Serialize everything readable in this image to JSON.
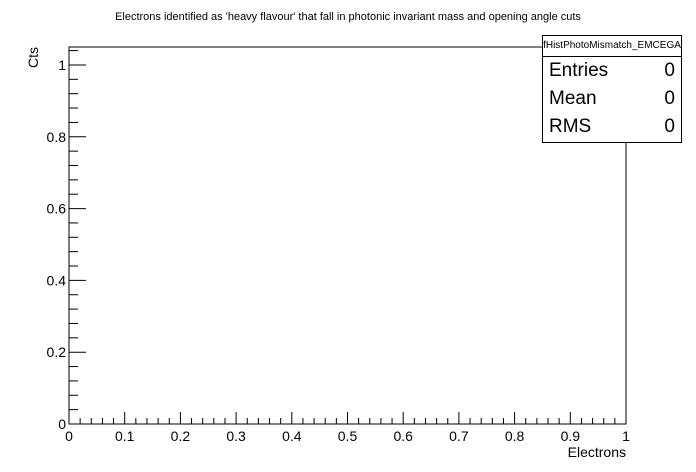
{
  "chart_data": {
    "type": "bar",
    "title": "Electrons identified as 'heavy flavour' that fall in photonic invariant mass and opening angle cuts",
    "xlabel": "Electrons",
    "ylabel": "Cts",
    "xlim": [
      0,
      1
    ],
    "ylim": [
      0,
      1.05
    ],
    "x_ticks": [
      "0",
      "0.1",
      "0.2",
      "0.3",
      "0.4",
      "0.5",
      "0.6",
      "0.7",
      "0.8",
      "0.9",
      "1"
    ],
    "y_ticks": [
      "0",
      "0.2",
      "0.4",
      "0.6",
      "0.8",
      "1"
    ],
    "values": [],
    "grid": false,
    "legend": "none"
  },
  "stats": {
    "name": "fHistPhotoMismatch_EMCEGA",
    "rows": [
      {
        "label": "Entries",
        "value": "0"
      },
      {
        "label": "Mean",
        "value": "0"
      },
      {
        "label": "RMS",
        "value": "0"
      }
    ]
  }
}
